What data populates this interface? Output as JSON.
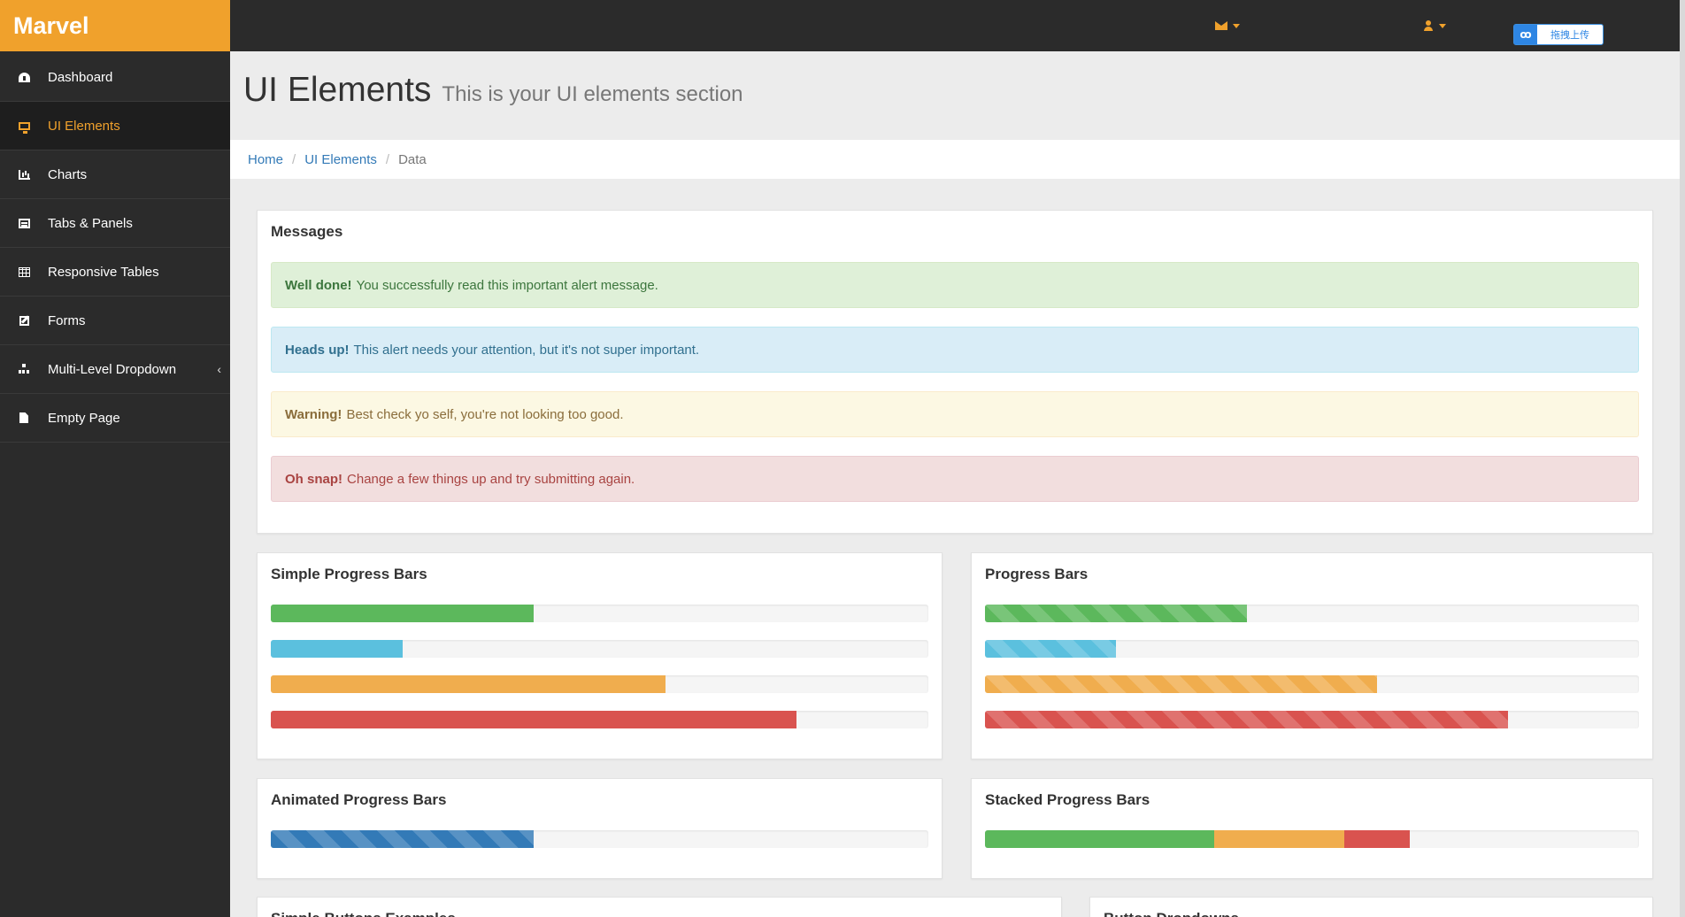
{
  "app": {
    "brand": "Marvel"
  },
  "topbar": {
    "upload_label": "拖拽上传",
    "upload_logo": "ꝏ",
    "icons": [
      "envelope-icon",
      "user-icon"
    ]
  },
  "sidebar": {
    "items": [
      {
        "label": "Dashboard",
        "icon": "dashboard-icon",
        "active": false
      },
      {
        "label": "UI Elements",
        "icon": "desktop-icon",
        "active": true
      },
      {
        "label": "Charts",
        "icon": "bar-chart-icon",
        "active": false
      },
      {
        "label": "Tabs & Panels",
        "icon": "tabs-icon",
        "active": false
      },
      {
        "label": "Responsive Tables",
        "icon": "table-icon",
        "active": false
      },
      {
        "label": "Forms",
        "icon": "edit-icon",
        "active": false
      },
      {
        "label": "Multi-Level Dropdown",
        "icon": "sitemap-icon",
        "active": false,
        "chevron": "‹"
      },
      {
        "label": "Empty Page",
        "icon": "file-icon",
        "active": false
      }
    ]
  },
  "header": {
    "title": "UI Elements",
    "subtitle": "This is your UI elements section"
  },
  "breadcrumb": {
    "items": [
      "Home",
      "UI Elements"
    ],
    "active": "Data",
    "separator": "/"
  },
  "messages": {
    "title": "Messages",
    "alerts": [
      {
        "type": "success",
        "strong": "Well done!",
        "text": "You successfully read this important alert message."
      },
      {
        "type": "info",
        "strong": "Heads up!",
        "text": "This alert needs your attention, but it's not super important."
      },
      {
        "type": "warning",
        "strong": "Warning!",
        "text": "Best check yo self, you're not looking too good."
      },
      {
        "type": "danger",
        "strong": "Oh snap!",
        "text": "Change a few things up and try submitting again."
      }
    ]
  },
  "colors": {
    "brand": "#f0a12c",
    "success": "#5cb85c",
    "info": "#5bc0de",
    "warning": "#f0ad4e",
    "danger": "#d9534f",
    "primary": "#337ab7"
  },
  "simple_progress": {
    "title": "Simple Progress Bars",
    "bars": [
      {
        "percent": 40,
        "color": "success"
      },
      {
        "percent": 20,
        "color": "info"
      },
      {
        "percent": 60,
        "color": "warning"
      },
      {
        "percent": 80,
        "color": "danger"
      }
    ]
  },
  "striped_progress": {
    "title": "Progress Bars",
    "bars": [
      {
        "percent": 40,
        "color": "success"
      },
      {
        "percent": 20,
        "color": "info"
      },
      {
        "percent": 60,
        "color": "warning"
      },
      {
        "percent": 80,
        "color": "danger"
      }
    ]
  },
  "animated_progress": {
    "title": "Animated Progress Bars",
    "bars": [
      {
        "percent": 40,
        "color": "primary"
      }
    ]
  },
  "stacked_progress": {
    "title": "Stacked Progress Bars",
    "segments": [
      {
        "percent": 35,
        "color": "success"
      },
      {
        "percent": 20,
        "color": "warning"
      },
      {
        "percent": 10,
        "color": "danger"
      }
    ]
  },
  "more_panels": {
    "buttons_title": "Simple Buttons Examples",
    "dropdowns_title": "Button Dropdowns"
  }
}
